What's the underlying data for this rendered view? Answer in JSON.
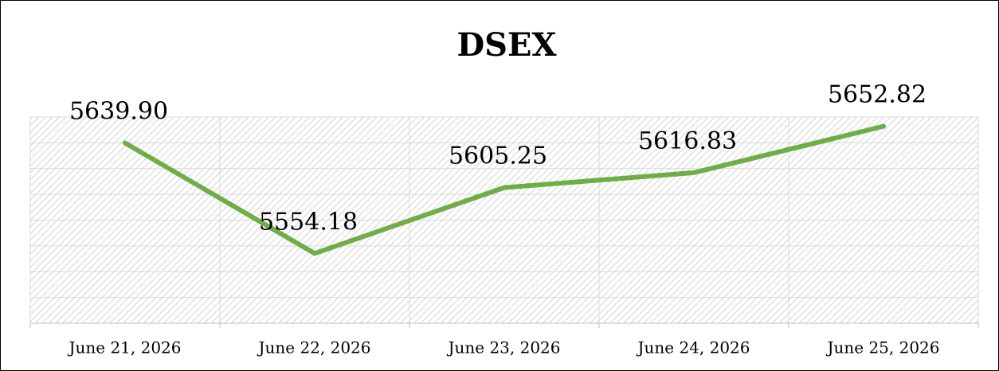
{
  "chart_data": {
    "type": "line",
    "title": "DSEX",
    "categories": [
      "June 21, 2026",
      "June 22, 2026",
      "June 23, 2026",
      "June 24, 2026",
      "June 25, 2026"
    ],
    "series": [
      {
        "name": "DSEX",
        "color": "#70ad47",
        "values": [
          5639.9,
          5554.18,
          5605.25,
          5616.83,
          5652.82
        ],
        "value_labels": [
          "5639.90",
          "5554.18",
          "5605.25",
          "5616.83",
          "5652.82"
        ]
      }
    ],
    "ylim": [
      5500,
      5660
    ],
    "yticks": [
      5500,
      5520,
      5540,
      5560,
      5580,
      5600,
      5620,
      5640,
      5660
    ],
    "grid": true
  }
}
